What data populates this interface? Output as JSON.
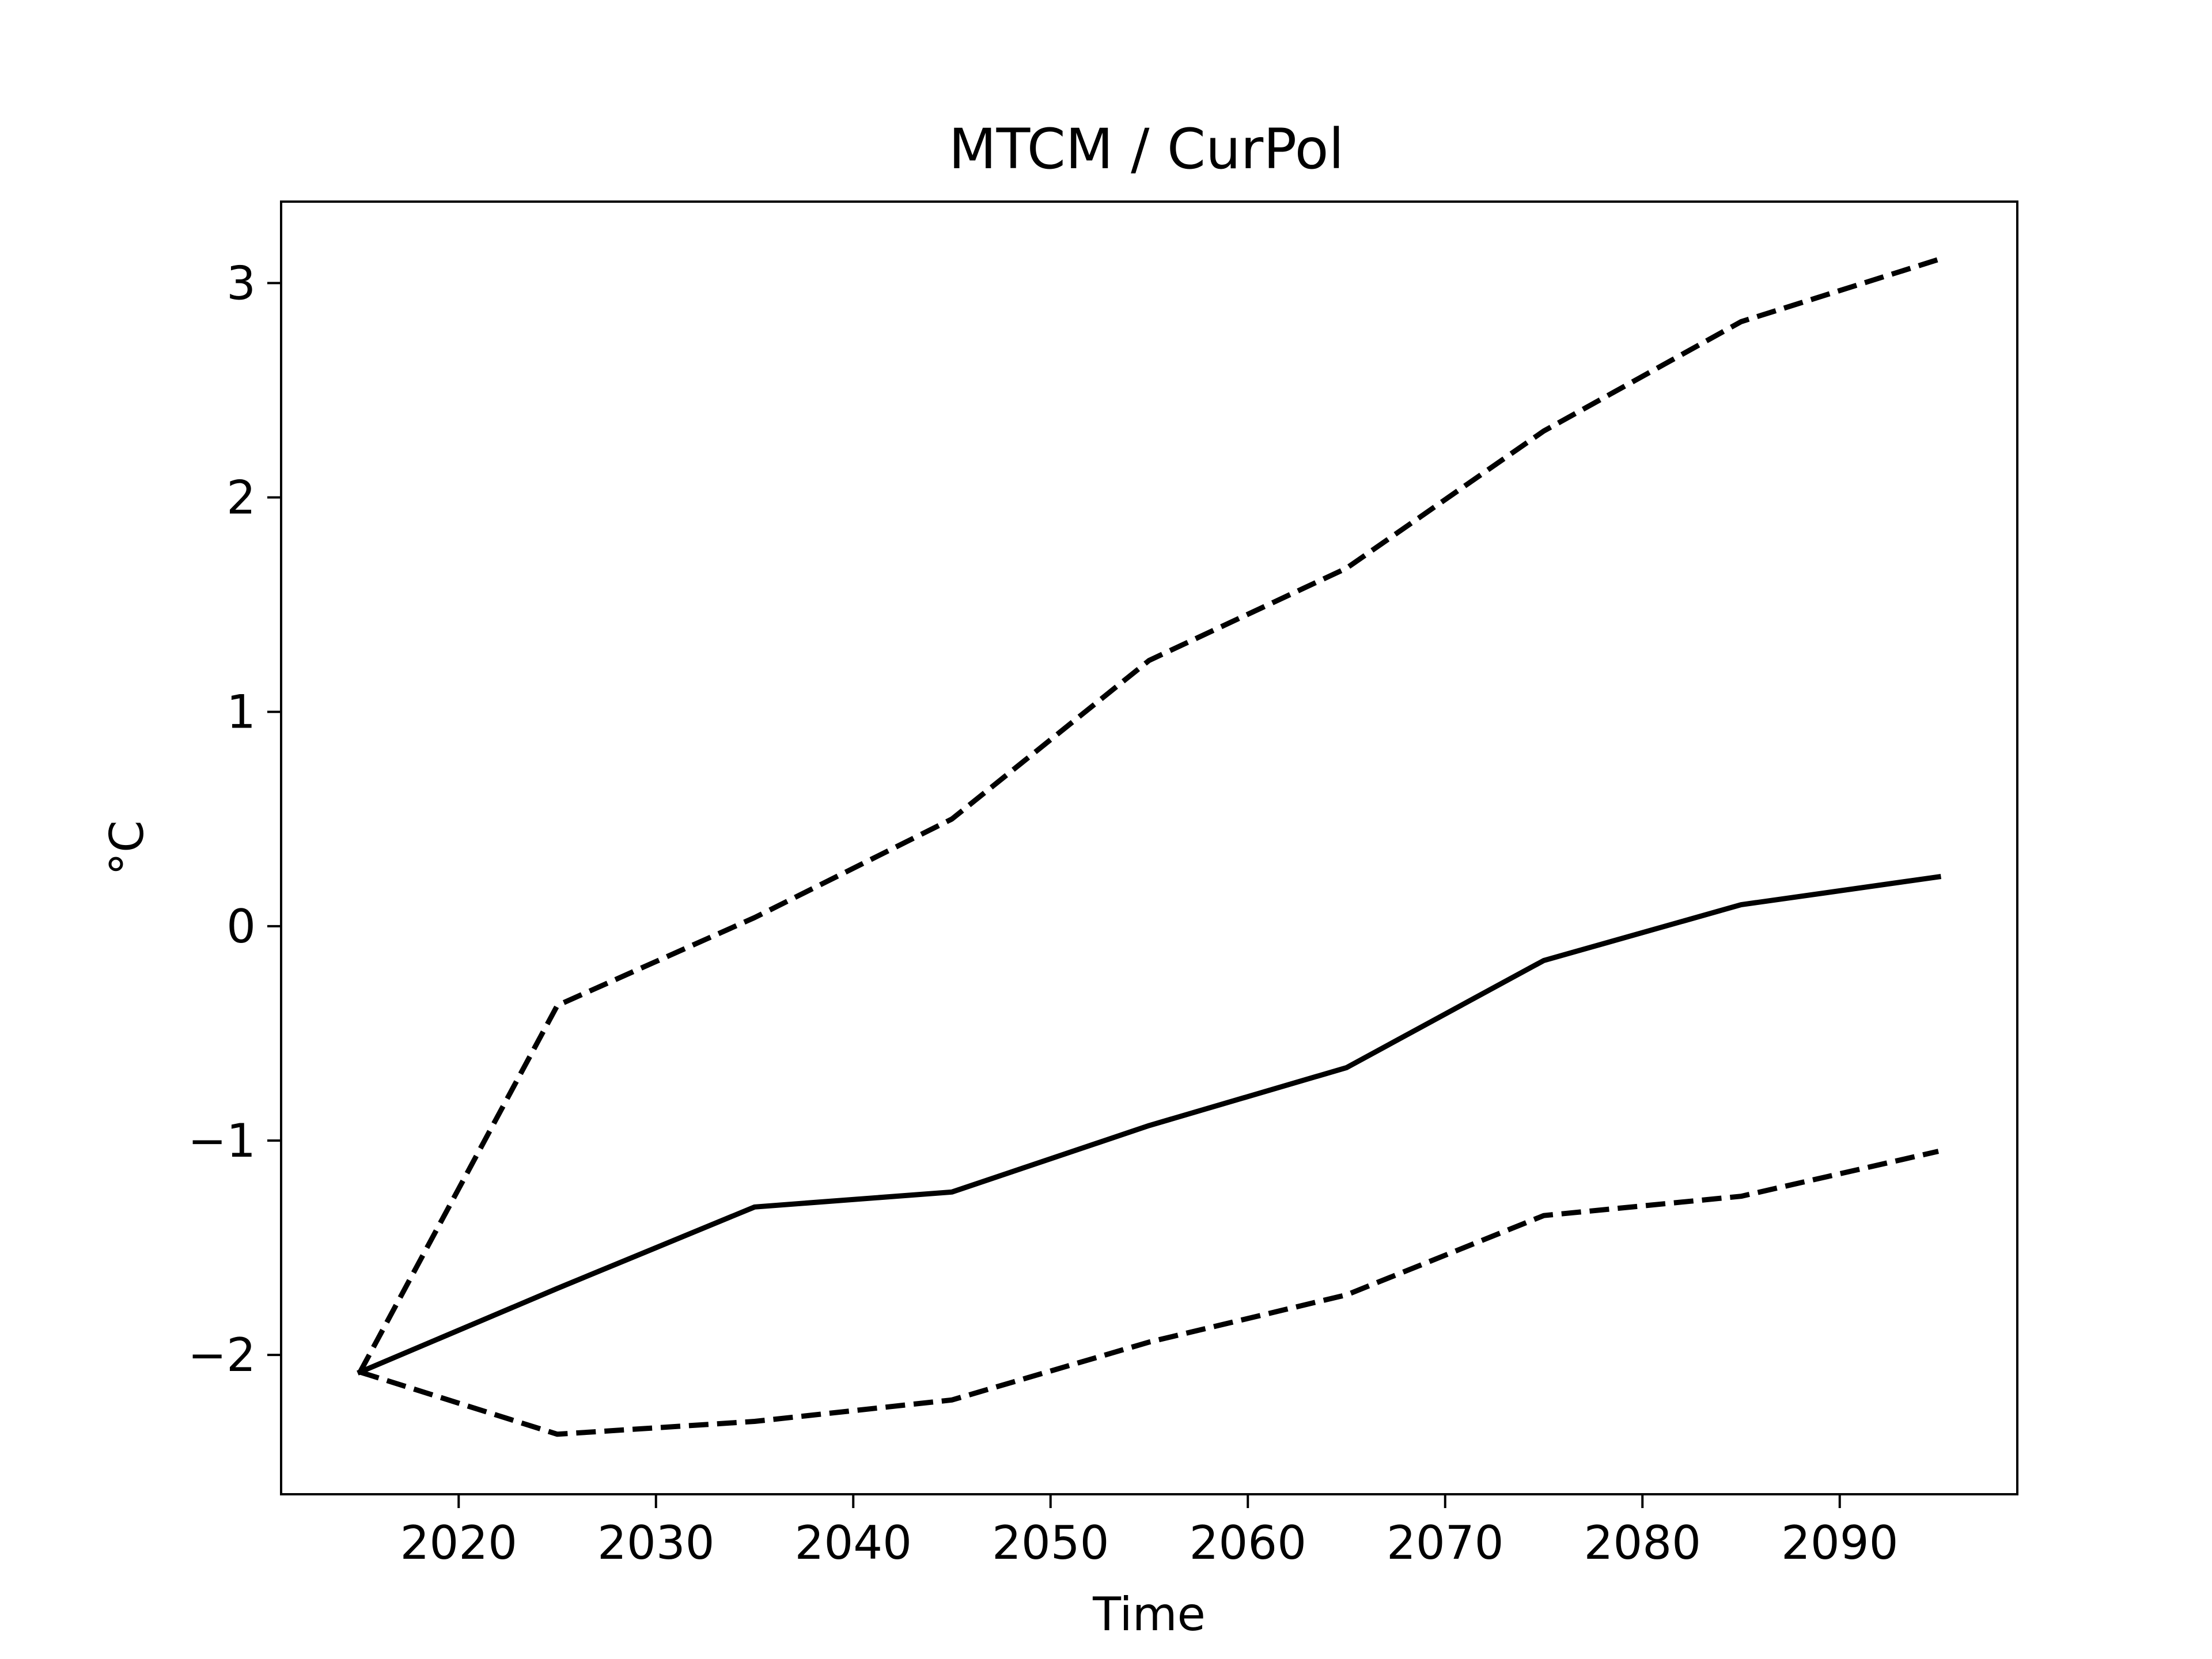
{
  "chart_data": {
    "type": "line",
    "title": "MTCM / CurPol",
    "xlabel": "Time",
    "ylabel": "°C",
    "xlim": [
      2011,
      2099
    ],
    "ylim": [
      -2.65,
      3.38
    ],
    "xticks": [
      2020,
      2030,
      2040,
      2050,
      2060,
      2070,
      2080,
      2090
    ],
    "yticks": [
      -2,
      -1,
      0,
      1,
      2,
      3
    ],
    "ytick_labels": [
      "−2",
      "−1",
      "0",
      "1",
      "2",
      "3"
    ],
    "grid": false,
    "legend": "none",
    "x": [
      2015,
      2025,
      2035,
      2045,
      2055,
      2065,
      2075,
      2085,
      2095
    ],
    "series": [
      {
        "style": "solid",
        "color": "#000000",
        "values": [
          -2.08,
          -1.69,
          -1.31,
          -1.24,
          -0.93,
          -0.66,
          -0.16,
          0.1,
          0.23
        ]
      },
      {
        "style": "dashed",
        "color": "#000000",
        "values": [
          -2.08,
          -0.37,
          0.04,
          0.5,
          1.24,
          1.67,
          2.31,
          2.82,
          3.11
        ]
      },
      {
        "style": "dashed",
        "color": "#000000",
        "values": [
          -2.08,
          -2.37,
          -2.31,
          -2.21,
          -1.94,
          -1.72,
          -1.35,
          -1.26,
          -1.05
        ]
      }
    ]
  }
}
